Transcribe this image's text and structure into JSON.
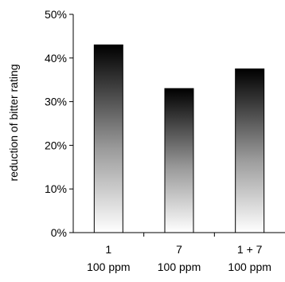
{
  "chart_data": {
    "type": "bar",
    "categories": [
      {
        "line1": "1",
        "line2": "100 ppm"
      },
      {
        "line1": "7",
        "line2": "100 ppm"
      },
      {
        "line1": "1 + 7",
        "line2": "100 ppm"
      }
    ],
    "values": [
      43,
      33,
      37.5
    ],
    "value_unit": "%",
    "ylabel": "reduction of bitter rating",
    "xlabel": "",
    "title": "",
    "ylim": [
      0,
      50
    ],
    "yticks": [
      "0%",
      "10%",
      "20%",
      "30%",
      "40%",
      "50%"
    ],
    "ytick_values": [
      0,
      10,
      20,
      30,
      40,
      50
    ],
    "grid": false,
    "legend": "none",
    "bar_gradient": {
      "top": "#000000",
      "bottom": "#ffffff"
    }
  }
}
